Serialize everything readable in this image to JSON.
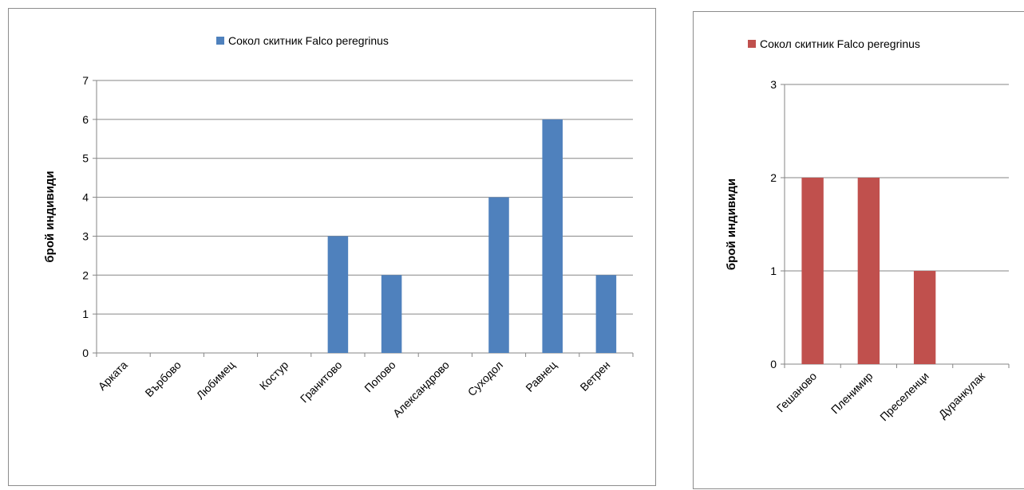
{
  "chart_data": [
    {
      "type": "bar",
      "categories": [
        "Арката",
        "Върбово",
        "Любимец",
        "Костур",
        "Гранитово",
        "Попово",
        "Александрово",
        "Суходол",
        "Равнец",
        "Ветрен"
      ],
      "series": [
        {
          "name": "Сокол скитник Falco peregrinus",
          "values": [
            0,
            0,
            0,
            0,
            3,
            2,
            0,
            4,
            6,
            2
          ],
          "color": "#4f81bd"
        }
      ],
      "ylabel": "брой индивиди",
      "ylim": [
        0,
        7
      ],
      "yticks": [
        "0",
        "1",
        "2",
        "3",
        "4",
        "5",
        "6",
        "7"
      ],
      "grid": true,
      "legend": "top"
    },
    {
      "type": "bar",
      "categories": [
        "Гешаново",
        "Пленимир",
        "Преселенци",
        "Дуранкулак"
      ],
      "series": [
        {
          "name": "Сокол скитник Falco peregrinus",
          "values": [
            2,
            2,
            1,
            0
          ],
          "color": "#c0504d"
        }
      ],
      "ylabel": "брой индивиди",
      "ylim": [
        0,
        3
      ],
      "yticks": [
        "0",
        "1",
        "2",
        "3"
      ],
      "grid": true,
      "legend": "top"
    }
  ]
}
